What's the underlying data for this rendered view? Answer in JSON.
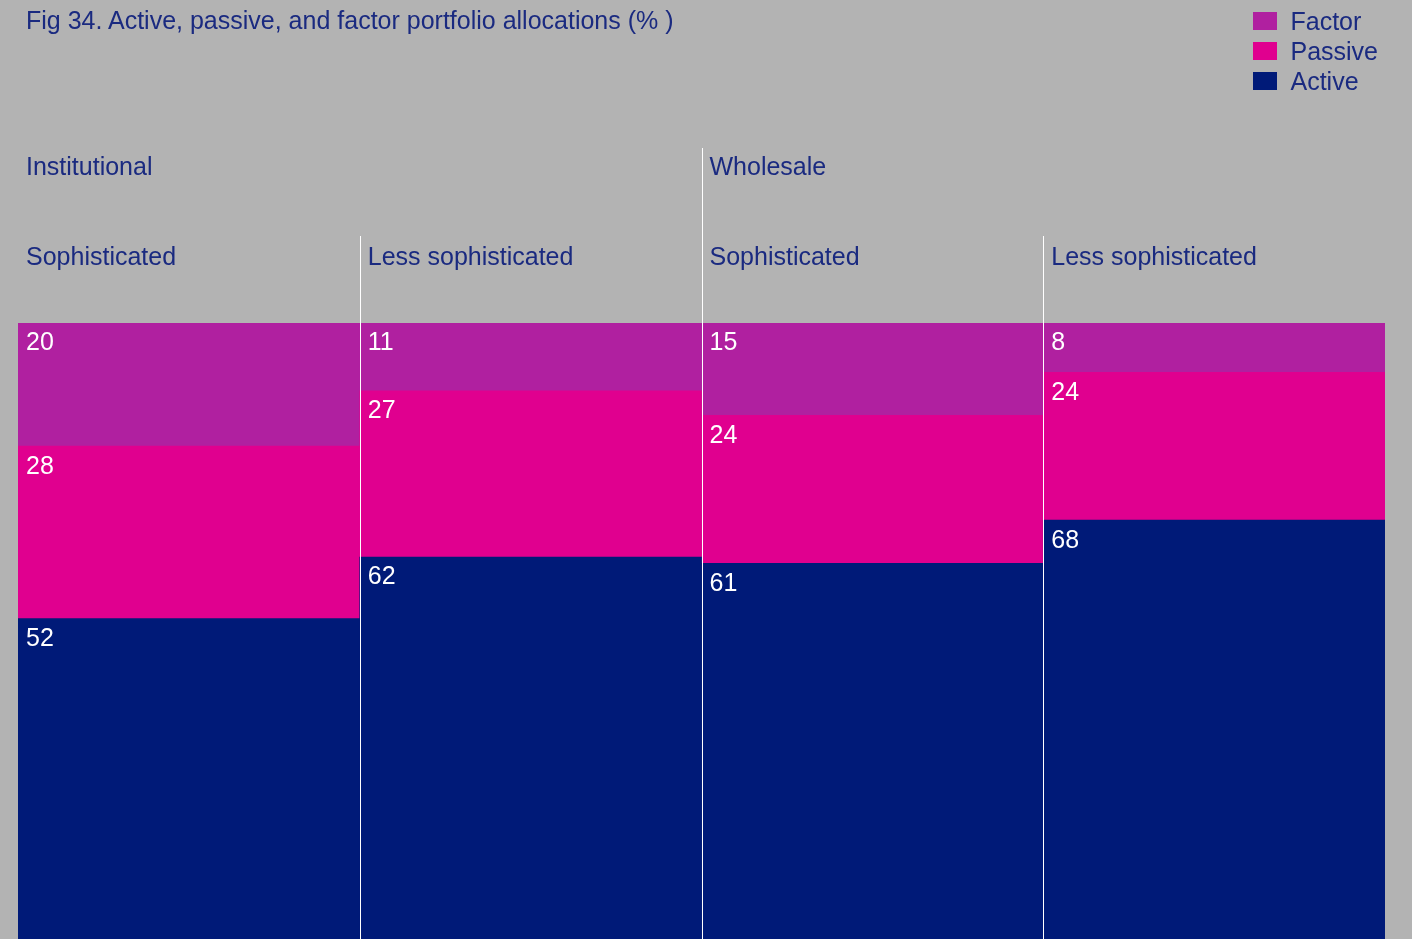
{
  "chart_data": {
    "type": "bar",
    "title": "Fig 34. Active, passive, and factor portfolio allocations (% )",
    "categories": [
      "Sophisticated",
      "Less sophisticated",
      "Sophisticated",
      "Less sophisticated"
    ],
    "series": [
      {
        "name": "Active",
        "color": "#001a78",
        "values": [
          52,
          62,
          61,
          68
        ]
      },
      {
        "name": "Passive",
        "color": "#e0008f",
        "values": [
          28,
          27,
          24,
          24
        ]
      },
      {
        "name": "Factor",
        "color": "#b020a0",
        "values": [
          20,
          11,
          15,
          8
        ]
      }
    ],
    "stacked": true,
    "data_labels": true,
    "legend": "top right",
    "tick_labels": "x",
    "annotations": [
      "Institutional",
      "Wholesale"
    ]
  }
}
